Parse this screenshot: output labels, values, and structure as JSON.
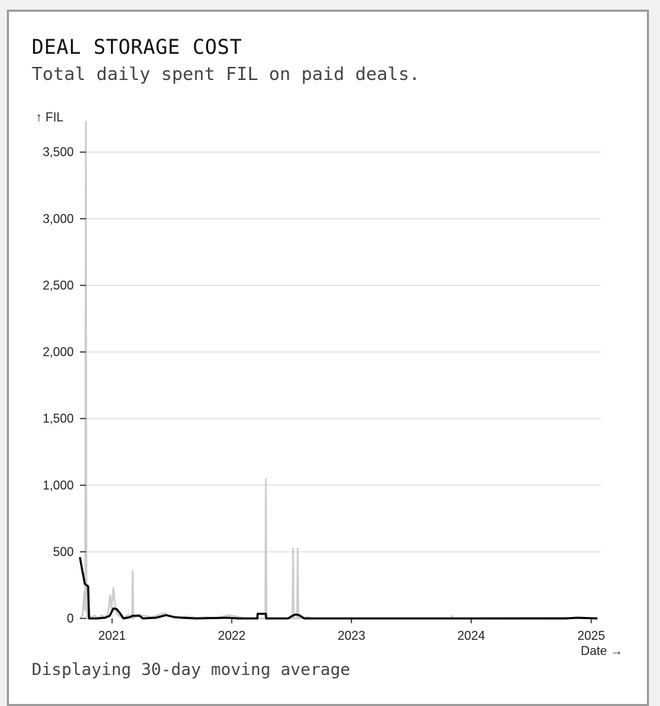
{
  "card": {
    "title": "DEAL STORAGE COST",
    "subtitle": "Total daily spent FIL on paid deals.",
    "footer": "Displaying 30-day moving average"
  },
  "chart_data": {
    "type": "line",
    "ylabel": "↑ FIL",
    "xlabel": "Date →",
    "ylim": [
      0,
      3700
    ],
    "xlim": [
      "2020-09-25",
      "2025-01-30"
    ],
    "y_ticks": [
      0,
      500,
      1000,
      1500,
      2000,
      2500,
      3000,
      3500
    ],
    "y_tick_labels": [
      "0",
      "500",
      "1,000",
      "1,500",
      "2,000",
      "2,500",
      "3,000",
      "3,500"
    ],
    "x_ticks": [
      "2021-01-01",
      "2022-01-01",
      "2023-01-01",
      "2024-01-01",
      "2025-01-01"
    ],
    "x_tick_labels": [
      "2021",
      "2022",
      "2023",
      "2024",
      "2025"
    ],
    "grid": true,
    "colors": {
      "daily": "#cccccc",
      "average": "#000000",
      "grid": "#e6e6e6"
    },
    "series": [
      {
        "values": [
          [
            "2020-09-25",
            0
          ],
          [
            "2020-10-03",
            20
          ],
          [
            "2020-10-08",
            200
          ],
          [
            "2020-10-11",
            60
          ],
          [
            "2020-10-13",
            3730
          ],
          [
            "2020-10-15",
            300
          ],
          [
            "2020-10-17",
            0
          ],
          [
            "2020-11-10",
            20
          ],
          [
            "2020-11-20",
            0
          ],
          [
            "2020-12-01",
            25
          ],
          [
            "2020-12-10",
            0
          ],
          [
            "2020-12-20",
            40
          ],
          [
            "2020-12-26",
            175
          ],
          [
            "2020-12-30",
            60
          ],
          [
            "2021-01-05",
            230
          ],
          [
            "2021-01-09",
            120
          ],
          [
            "2021-01-15",
            40
          ],
          [
            "2021-01-22",
            20
          ],
          [
            "2021-02-05",
            0
          ],
          [
            "2021-02-20",
            30
          ],
          [
            "2021-03-03",
            0
          ],
          [
            "2021-03-05",
            355
          ],
          [
            "2021-03-07",
            0
          ],
          [
            "2021-03-20",
            30
          ],
          [
            "2021-04-10",
            20
          ],
          [
            "2021-05-01",
            10
          ],
          [
            "2021-06-10",
            40
          ],
          [
            "2021-06-20",
            20
          ],
          [
            "2021-07-15",
            5
          ],
          [
            "2021-08-15",
            15
          ],
          [
            "2021-09-15",
            5
          ],
          [
            "2021-10-15",
            10
          ],
          [
            "2021-11-20",
            5
          ],
          [
            "2021-12-20",
            25
          ],
          [
            "2022-01-15",
            15
          ],
          [
            "2022-02-10",
            0
          ],
          [
            "2022-04-13",
            0
          ],
          [
            "2022-04-15",
            1045
          ],
          [
            "2022-04-17",
            0
          ],
          [
            "2022-07-05",
            0
          ],
          [
            "2022-07-07",
            525
          ],
          [
            "2022-07-09",
            0
          ],
          [
            "2022-07-19",
            0
          ],
          [
            "2022-07-21",
            525
          ],
          [
            "2022-07-23",
            0
          ],
          [
            "2022-08-20",
            10
          ],
          [
            "2022-09-10",
            0
          ],
          [
            "2023-11-01",
            0
          ],
          [
            "2023-11-03",
            20
          ],
          [
            "2023-11-05",
            0
          ],
          [
            "2024-09-10",
            5
          ],
          [
            "2025-01-20",
            0
          ]
        ]
      },
      {
        "values": [
          [
            "2020-09-25",
            460
          ],
          [
            "2020-10-03",
            350
          ],
          [
            "2020-10-10",
            260
          ],
          [
            "2020-10-20",
            240
          ],
          [
            "2020-10-23",
            0
          ],
          [
            "2020-11-15",
            0
          ],
          [
            "2020-12-10",
            5
          ],
          [
            "2020-12-25",
            20
          ],
          [
            "2021-01-05",
            75
          ],
          [
            "2021-01-15",
            70
          ],
          [
            "2021-01-25",
            40
          ],
          [
            "2021-02-05",
            0
          ],
          [
            "2021-02-25",
            10
          ],
          [
            "2021-03-05",
            20
          ],
          [
            "2021-03-25",
            20
          ],
          [
            "2021-04-05",
            0
          ],
          [
            "2021-05-15",
            5
          ],
          [
            "2021-06-15",
            25
          ],
          [
            "2021-07-10",
            10
          ],
          [
            "2021-08-01",
            5
          ],
          [
            "2021-09-15",
            0
          ],
          [
            "2021-12-20",
            5
          ],
          [
            "2022-01-20",
            0
          ],
          [
            "2022-03-20",
            0
          ],
          [
            "2022-03-21",
            35
          ],
          [
            "2022-04-15",
            35
          ],
          [
            "2022-04-16",
            0
          ],
          [
            "2022-06-22",
            0
          ],
          [
            "2022-07-05",
            20
          ],
          [
            "2022-07-15",
            30
          ],
          [
            "2022-07-25",
            25
          ],
          [
            "2022-08-10",
            0
          ],
          [
            "2024-10-15",
            0
          ],
          [
            "2024-11-20",
            5
          ],
          [
            "2025-01-20",
            0
          ]
        ]
      }
    ]
  }
}
